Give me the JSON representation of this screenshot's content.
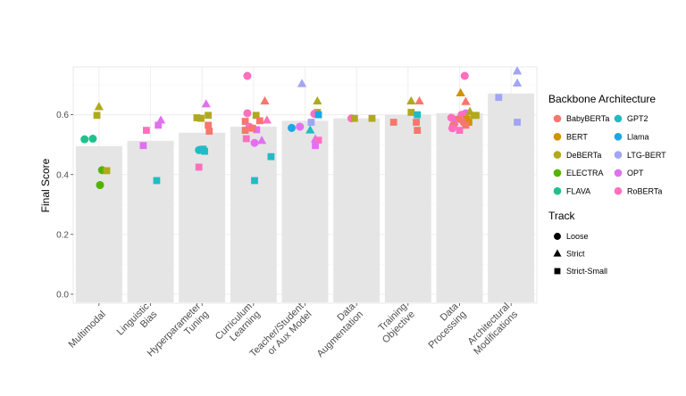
{
  "chart_data": {
    "type": "bar",
    "title": "",
    "xlabel": "",
    "ylabel": "Final Score",
    "ylim": [
      -0.03,
      0.76
    ],
    "yticks": [
      "0.0",
      "0.2",
      "0.4",
      "0.6"
    ],
    "grid": true,
    "legend_position": "right",
    "categories": [
      {
        "label": [
          "Multimodal"
        ],
        "value": 0.495
      },
      {
        "label": [
          "Linguistic",
          "Bias"
        ],
        "value": 0.513
      },
      {
        "label": [
          "Hyperparameter",
          "Tuning"
        ],
        "value": 0.54
      },
      {
        "label": [
          "Curriculum",
          "Learning"
        ],
        "value": 0.56
      },
      {
        "label": [
          "Teacher/Student",
          "or Aux Model"
        ],
        "value": 0.58
      },
      {
        "label": [
          "Data",
          "Augmentation"
        ],
        "value": 0.588
      },
      {
        "label": [
          "Training",
          "Objective"
        ],
        "value": 0.6
      },
      {
        "label": [
          "Data",
          "Processing"
        ],
        "value": 0.605
      },
      {
        "label": [
          "Architectural",
          "Modifications"
        ],
        "value": 0.671
      }
    ],
    "backbone_legend": {
      "title": "Backbone Architecture",
      "items": [
        {
          "name": "BabyBERTa",
          "color": "#F8766D"
        },
        {
          "name": "BERT",
          "color": "#D39200"
        },
        {
          "name": "DeBERTa",
          "color": "#B0A91F"
        },
        {
          "name": "ELECTRA",
          "color": "#53B400"
        },
        {
          "name": "FLAVA",
          "color": "#1FC28D"
        },
        {
          "name": "GPT2",
          "color": "#1FBCC4"
        },
        {
          "name": "Llama",
          "color": "#1AA7E6"
        },
        {
          "name": "LTG-BERT",
          "color": "#A2A4F5"
        },
        {
          "name": "OPT",
          "color": "#E170F0"
        },
        {
          "name": "RoBERTa",
          "color": "#FF6FBE"
        }
      ]
    },
    "track_legend": {
      "title": "Track",
      "items": [
        {
          "name": "Loose",
          "shape": "circle"
        },
        {
          "name": "Strict",
          "shape": "triangle"
        },
        {
          "name": "Strict-Small",
          "shape": "square"
        }
      ]
    },
    "points": [
      {
        "cat": 0,
        "dx": -0.28,
        "y": 0.518,
        "backbone": "FLAVA",
        "track": "circle"
      },
      {
        "cat": 0,
        "dx": -0.12,
        "y": 0.52,
        "backbone": "FLAVA",
        "track": "circle"
      },
      {
        "cat": 0,
        "dx": 0.0,
        "y": 0.626,
        "backbone": "DeBERTa",
        "track": "triangle"
      },
      {
        "cat": 0,
        "dx": -0.04,
        "y": 0.598,
        "backbone": "DeBERTa",
        "track": "square"
      },
      {
        "cat": 0,
        "dx": 0.06,
        "y": 0.415,
        "backbone": "ELECTRA",
        "track": "circle"
      },
      {
        "cat": 0,
        "dx": 0.15,
        "y": 0.413,
        "backbone": "DeBERTa",
        "track": "square"
      },
      {
        "cat": 0,
        "dx": 0.02,
        "y": 0.365,
        "backbone": "ELECTRA",
        "track": "circle"
      },
      {
        "cat": 1,
        "dx": 0.2,
        "y": 0.581,
        "backbone": "OPT",
        "track": "triangle"
      },
      {
        "cat": 1,
        "dx": 0.15,
        "y": 0.565,
        "backbone": "OPT",
        "track": "square"
      },
      {
        "cat": 1,
        "dx": -0.08,
        "y": 0.548,
        "backbone": "RoBERTa",
        "track": "square"
      },
      {
        "cat": 1,
        "dx": -0.14,
        "y": 0.497,
        "backbone": "OPT",
        "track": "square"
      },
      {
        "cat": 1,
        "dx": 0.12,
        "y": 0.38,
        "backbone": "GPT2",
        "track": "square"
      },
      {
        "cat": 2,
        "dx": 0.08,
        "y": 0.635,
        "backbone": "OPT",
        "track": "triangle"
      },
      {
        "cat": 2,
        "dx": 0.12,
        "y": 0.598,
        "backbone": "DeBERTa",
        "track": "square"
      },
      {
        "cat": 2,
        "dx": -0.1,
        "y": 0.59,
        "backbone": "DeBERTa",
        "track": "square"
      },
      {
        "cat": 2,
        "dx": -0.02,
        "y": 0.588,
        "backbone": "DeBERTa",
        "track": "square"
      },
      {
        "cat": 2,
        "dx": 0.12,
        "y": 0.565,
        "backbone": "BabyBERTa",
        "track": "square"
      },
      {
        "cat": 2,
        "dx": 0.14,
        "y": 0.545,
        "backbone": "BabyBERTa",
        "track": "square"
      },
      {
        "cat": 2,
        "dx": -0.06,
        "y": 0.482,
        "backbone": "GPT2",
        "track": "circle"
      },
      {
        "cat": 2,
        "dx": 0.02,
        "y": 0.485,
        "backbone": "GPT2",
        "track": "square"
      },
      {
        "cat": 2,
        "dx": 0.05,
        "y": 0.478,
        "backbone": "GPT2",
        "track": "square"
      },
      {
        "cat": 2,
        "dx": -0.06,
        "y": 0.425,
        "backbone": "RoBERTa",
        "track": "square"
      },
      {
        "cat": 3,
        "dx": -0.12,
        "y": 0.73,
        "backbone": "RoBERTa",
        "track": "circle"
      },
      {
        "cat": 3,
        "dx": 0.22,
        "y": 0.645,
        "backbone": "BabyBERTa",
        "track": "triangle"
      },
      {
        "cat": 3,
        "dx": -0.12,
        "y": 0.605,
        "backbone": "RoBERTa",
        "track": "circle"
      },
      {
        "cat": 3,
        "dx": 0.05,
        "y": 0.598,
        "backbone": "DeBERTa",
        "track": "square"
      },
      {
        "cat": 3,
        "dx": 0.26,
        "y": 0.581,
        "backbone": "RoBERTa",
        "track": "triangle"
      },
      {
        "cat": 3,
        "dx": -0.16,
        "y": 0.578,
        "backbone": "BabyBERTa",
        "track": "square"
      },
      {
        "cat": 3,
        "dx": 0.12,
        "y": 0.58,
        "backbone": "BabyBERTa",
        "track": "square"
      },
      {
        "cat": 3,
        "dx": -0.08,
        "y": 0.56,
        "backbone": "RoBERTa",
        "track": "circle"
      },
      {
        "cat": 3,
        "dx": -0.16,
        "y": 0.548,
        "backbone": "BabyBERTa",
        "track": "square"
      },
      {
        "cat": 3,
        "dx": 0.06,
        "y": 0.55,
        "backbone": "OPT",
        "track": "square"
      },
      {
        "cat": 3,
        "dx": -0.02,
        "y": 0.555,
        "backbone": "BabyBERTa",
        "track": "square"
      },
      {
        "cat": 3,
        "dx": 0.16,
        "y": 0.513,
        "backbone": "OPT",
        "track": "triangle"
      },
      {
        "cat": 3,
        "dx": -0.14,
        "y": 0.52,
        "backbone": "RoBERTa",
        "track": "square"
      },
      {
        "cat": 3,
        "dx": 0.02,
        "y": 0.506,
        "backbone": "OPT",
        "track": "circle"
      },
      {
        "cat": 3,
        "dx": 0.34,
        "y": 0.46,
        "backbone": "GPT2",
        "track": "square"
      },
      {
        "cat": 3,
        "dx": 0.02,
        "y": 0.38,
        "backbone": "GPT2",
        "track": "square"
      },
      {
        "cat": 4,
        "dx": -0.06,
        "y": 0.703,
        "backbone": "LTG-BERT",
        "track": "triangle"
      },
      {
        "cat": 4,
        "dx": 0.24,
        "y": 0.645,
        "backbone": "DeBERTa",
        "track": "triangle"
      },
      {
        "cat": 4,
        "dx": 0.24,
        "y": 0.608,
        "backbone": "DeBERTa",
        "track": "square"
      },
      {
        "cat": 4,
        "dx": 0.18,
        "y": 0.603,
        "backbone": "RoBERTa",
        "track": "circle"
      },
      {
        "cat": 4,
        "dx": 0.26,
        "y": 0.6,
        "backbone": "Llama",
        "track": "square"
      },
      {
        "cat": 4,
        "dx": 0.12,
        "y": 0.575,
        "backbone": "LTG-BERT",
        "track": "square"
      },
      {
        "cat": 4,
        "dx": -0.26,
        "y": 0.556,
        "backbone": "Llama",
        "track": "circle"
      },
      {
        "cat": 4,
        "dx": -0.1,
        "y": 0.56,
        "backbone": "OPT",
        "track": "circle"
      },
      {
        "cat": 4,
        "dx": 0.1,
        "y": 0.548,
        "backbone": "GPT2",
        "track": "triangle"
      },
      {
        "cat": 4,
        "dx": 0.2,
        "y": 0.518,
        "backbone": "OPT",
        "track": "triangle"
      },
      {
        "cat": 4,
        "dx": 0.26,
        "y": 0.515,
        "backbone": "RoBERTa",
        "track": "square"
      },
      {
        "cat": 4,
        "dx": 0.2,
        "y": 0.497,
        "backbone": "OPT",
        "track": "square"
      },
      {
        "cat": 5,
        "dx": -0.1,
        "y": 0.588,
        "backbone": "RoBERTa",
        "track": "circle"
      },
      {
        "cat": 5,
        "dx": -0.04,
        "y": 0.588,
        "backbone": "DeBERTa",
        "track": "square"
      },
      {
        "cat": 5,
        "dx": 0.3,
        "y": 0.588,
        "backbone": "DeBERTa",
        "track": "square"
      },
      {
        "cat": 6,
        "dx": 0.06,
        "y": 0.645,
        "backbone": "DeBERTa",
        "track": "triangle"
      },
      {
        "cat": 6,
        "dx": 0.22,
        "y": 0.645,
        "backbone": "BabyBERTa",
        "track": "triangle"
      },
      {
        "cat": 6,
        "dx": 0.06,
        "y": 0.608,
        "backbone": "DeBERTa",
        "track": "square"
      },
      {
        "cat": 6,
        "dx": 0.18,
        "y": 0.6,
        "backbone": "GPT2",
        "track": "square"
      },
      {
        "cat": 6,
        "dx": -0.28,
        "y": 0.575,
        "backbone": "BabyBERTa",
        "track": "square"
      },
      {
        "cat": 6,
        "dx": 0.16,
        "y": 0.575,
        "backbone": "BabyBERTa",
        "track": "square"
      },
      {
        "cat": 6,
        "dx": 0.18,
        "y": 0.548,
        "backbone": "BabyBERTa",
        "track": "square"
      },
      {
        "cat": 7,
        "dx": 0.1,
        "y": 0.73,
        "backbone": "RoBERTa",
        "track": "circle"
      },
      {
        "cat": 7,
        "dx": 0.02,
        "y": 0.672,
        "backbone": "BERT",
        "track": "triangle"
      },
      {
        "cat": 7,
        "dx": 0.12,
        "y": 0.643,
        "backbone": "BabyBERTa",
        "track": "triangle"
      },
      {
        "cat": 7,
        "dx": 0.12,
        "y": 0.605,
        "backbone": "OPT",
        "track": "circle"
      },
      {
        "cat": 7,
        "dx": 0.2,
        "y": 0.61,
        "backbone": "DeBERTa",
        "track": "triangle"
      },
      {
        "cat": 7,
        "dx": 0.28,
        "y": 0.598,
        "backbone": "DeBERTa",
        "track": "square"
      },
      {
        "cat": 7,
        "dx": 0.32,
        "y": 0.598,
        "backbone": "DeBERTa",
        "track": "square"
      },
      {
        "cat": 7,
        "dx": 0.04,
        "y": 0.6,
        "backbone": "RoBERTa",
        "track": "circle"
      },
      {
        "cat": 7,
        "dx": -0.16,
        "y": 0.59,
        "backbone": "RoBERTa",
        "track": "circle"
      },
      {
        "cat": 7,
        "dx": -0.02,
        "y": 0.585,
        "backbone": "BabyBERTa",
        "track": "square"
      },
      {
        "cat": 7,
        "dx": 0.14,
        "y": 0.585,
        "backbone": "BERT",
        "track": "square"
      },
      {
        "cat": 7,
        "dx": -0.1,
        "y": 0.575,
        "backbone": "OPT",
        "track": "triangle"
      },
      {
        "cat": 7,
        "dx": 0.08,
        "y": 0.575,
        "backbone": "BabyBERTa",
        "track": "circle"
      },
      {
        "cat": 7,
        "dx": 0.18,
        "y": 0.575,
        "backbone": "BERT",
        "track": "square"
      },
      {
        "cat": 7,
        "dx": 0.12,
        "y": 0.565,
        "backbone": "BabyBERTa",
        "track": "square"
      },
      {
        "cat": 7,
        "dx": -0.12,
        "y": 0.565,
        "backbone": "BabyBERTa",
        "track": "circle"
      },
      {
        "cat": 7,
        "dx": -0.14,
        "y": 0.555,
        "backbone": "RoBERTa",
        "track": "circle"
      },
      {
        "cat": 7,
        "dx": 0.0,
        "y": 0.548,
        "backbone": "RoBERTa",
        "track": "square"
      },
      {
        "cat": 8,
        "dx": 0.12,
        "y": 0.745,
        "backbone": "LTG-BERT",
        "track": "triangle"
      },
      {
        "cat": 8,
        "dx": 0.12,
        "y": 0.705,
        "backbone": "LTG-BERT",
        "track": "triangle"
      },
      {
        "cat": 8,
        "dx": -0.24,
        "y": 0.658,
        "backbone": "LTG-BERT",
        "track": "square"
      },
      {
        "cat": 8,
        "dx": 0.12,
        "y": 0.575,
        "backbone": "LTG-BERT",
        "track": "square"
      }
    ]
  }
}
